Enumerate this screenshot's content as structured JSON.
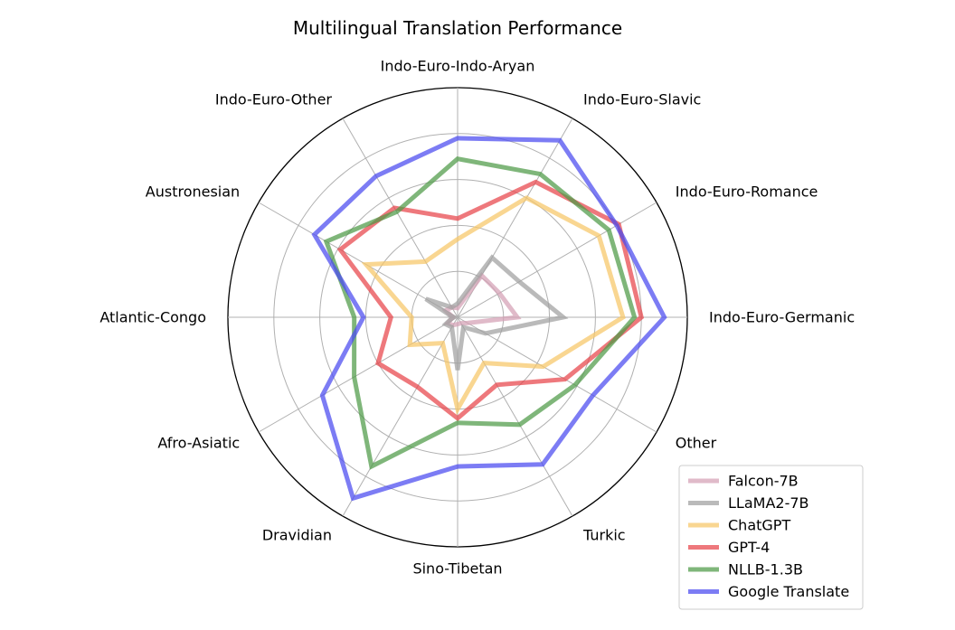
{
  "chart_data": {
    "type": "radar",
    "title": "Multilingual Translation Performance",
    "categories": [
      "Indo-Euro-Indo-Aryan",
      "Indo-Euro-Slavic",
      "Indo-Euro-Romance",
      "Indo-Euro-Germanic",
      "Other",
      "Turkic",
      "Sino-Tibetan",
      "Dravidian",
      "Afro-Asiatic",
      "Atlantic-Congo",
      "Austronesian",
      "Indo-Euro-Other"
    ],
    "rlim": [
      0,
      1
    ],
    "rings": [
      0.2,
      0.4,
      0.6,
      0.8,
      1.0
    ],
    "grid": true,
    "legend_position": "bottom-right",
    "series": [
      {
        "name": "Falcon-7B",
        "color": "#d4a0b4",
        "values": [
          0.04,
          0.21,
          0.21,
          0.26,
          0.05,
          0.03,
          0.03,
          0.04,
          0.05,
          0.02,
          0.06,
          0.05
        ]
      },
      {
        "name": "LLaMA2-7B",
        "color": "#a0a0a0",
        "values": [
          0.06,
          0.3,
          0.31,
          0.46,
          0.14,
          0.05,
          0.23,
          0.05,
          0.06,
          0.02,
          0.16,
          0.05
        ]
      },
      {
        "name": "ChatGPT",
        "color": "#f6c666",
        "values": [
          0.34,
          0.6,
          0.71,
          0.72,
          0.43,
          0.23,
          0.4,
          0.13,
          0.24,
          0.2,
          0.46,
          0.28
        ]
      },
      {
        "name": "GPT-4",
        "color": "#e8444a",
        "values": [
          0.43,
          0.68,
          0.81,
          0.8,
          0.54,
          0.34,
          0.44,
          0.35,
          0.4,
          0.29,
          0.59,
          0.55
        ]
      },
      {
        "name": "NLLB-1.3B",
        "color": "#4e9a47",
        "values": [
          0.69,
          0.72,
          0.76,
          0.77,
          0.59,
          0.54,
          0.46,
          0.75,
          0.52,
          0.45,
          0.66,
          0.53
        ]
      },
      {
        "name": "Google Translate",
        "color": "#4a4af0",
        "values": [
          0.78,
          0.89,
          0.8,
          0.9,
          0.68,
          0.74,
          0.65,
          0.91,
          0.68,
          0.41,
          0.72,
          0.71
        ]
      }
    ]
  }
}
